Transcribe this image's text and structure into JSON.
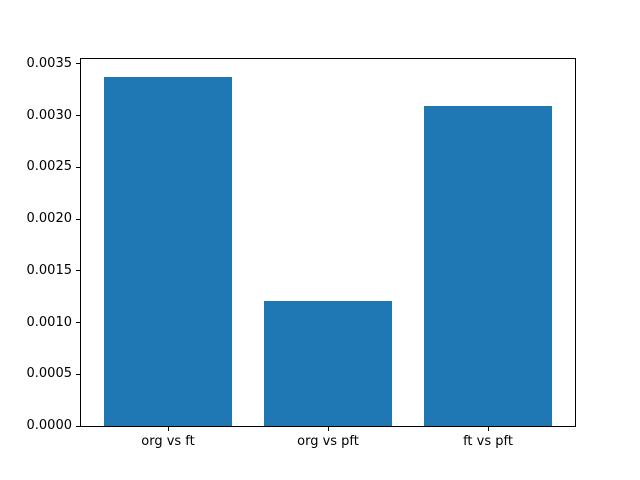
{
  "figure": {
    "background": "#ffffff",
    "text_color": "#000000",
    "spine_color": "#000000"
  },
  "chart_data": {
    "type": "bar",
    "title": "",
    "xlabel": "",
    "ylabel": "",
    "categories": [
      "org vs ft",
      "org vs pft",
      "ft vs pft"
    ],
    "values": [
      0.003375,
      0.001212,
      0.003096
    ],
    "bar_color": "#1f77b4",
    "bar_width_fraction": 0.8,
    "xlim": [
      -0.54,
      2.54
    ],
    "ylim": [
      0,
      0.003548
    ],
    "yticks": [
      0.0,
      0.0005,
      0.001,
      0.0015,
      0.002,
      0.0025,
      0.003,
      0.0035
    ],
    "ytick_labels": [
      "0.0000",
      "0.0005",
      "0.0010",
      "0.0015",
      "0.0020",
      "0.0025",
      "0.0030",
      "0.0035"
    ],
    "grid": false,
    "legend": null
  }
}
